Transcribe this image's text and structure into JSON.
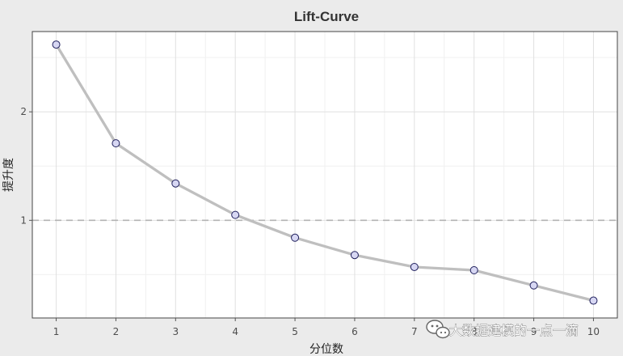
{
  "chart_data": {
    "type": "line",
    "title": "Lift-Curve",
    "xlabel": "分位数",
    "ylabel": "提升度",
    "x": [
      1,
      2,
      3,
      4,
      5,
      6,
      7,
      8,
      9,
      10
    ],
    "x_ticks": [
      "1",
      "2",
      "3",
      "4",
      "5",
      "6",
      "7",
      "8",
      "9",
      "10"
    ],
    "y_ticks": [
      "1",
      "2"
    ],
    "series": [
      {
        "values": [
          2.62,
          1.71,
          1.34,
          1.05,
          0.84,
          0.68,
          0.57,
          0.54,
          0.4,
          0.26
        ]
      }
    ],
    "reference_line": {
      "y": 1,
      "style": "dashed",
      "color": "#b3b3b3"
    },
    "xlim": [
      0.6,
      10.4
    ],
    "ylim": [
      0.1,
      2.74
    ],
    "grid": true,
    "legend": "none",
    "colors": {
      "page_background": "#ebebeb",
      "panel_background": "#ffffff",
      "grid_major": "#e0e0e0",
      "grid_minor": "#f0f0f0",
      "line": "#bfbfbf",
      "marker_fill": "#d7d7f3",
      "marker_stroke": "#1f1f5c",
      "panel_border": "#444444"
    }
  },
  "watermark": {
    "text": "大数据建模的一点一滴",
    "icon": "wechat-logo-icon"
  }
}
